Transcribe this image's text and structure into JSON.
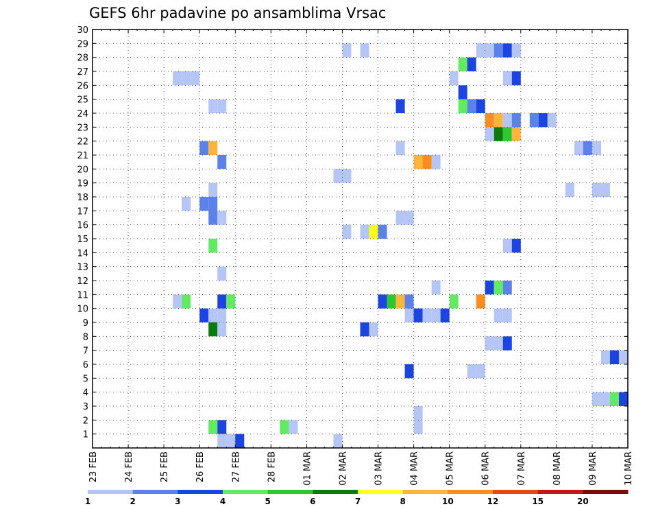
{
  "chart_data": {
    "type": "heatmap",
    "title": "GEFS 6hr padavine po ansamblima Vrsac",
    "x_tick_labels": [
      "23 FEB",
      "24 FEB",
      "25 FEB",
      "26 FEB",
      "27 FEB",
      "28 FEB",
      "01 MAR",
      "02 MAR",
      "03 MAR",
      "04 MAR",
      "05 MAR",
      "06 MAR",
      "07 MAR",
      "08 MAR",
      "09 MAR",
      "10 MAR"
    ],
    "y_tick_labels": [
      "1",
      "2",
      "3",
      "4",
      "5",
      "6",
      "7",
      "8",
      "9",
      "10",
      "11",
      "12",
      "13",
      "14",
      "15",
      "16",
      "17",
      "18",
      "19",
      "20",
      "21",
      "22",
      "23",
      "24",
      "25",
      "26",
      "27",
      "28",
      "29",
      "30"
    ],
    "xlim": [
      0,
      60
    ],
    "ylim": [
      0,
      30
    ],
    "grid": true,
    "colorbar": {
      "labels": [
        "1",
        "2",
        "3",
        "4",
        "5",
        "6",
        "7",
        "8",
        "10",
        "12",
        "15",
        "20"
      ],
      "colors": [
        "#b4c5f6",
        "#5a82ea",
        "#1c44e0",
        "#62ea62",
        "#2cc82c",
        "#0c7a0c",
        "#ffff20",
        "#ffb43c",
        "#ff8c1e",
        "#e64a14",
        "#c41818",
        "#7a0c0c"
      ]
    },
    "cells": [
      {
        "x": 14,
        "y": 0,
        "v": 1
      },
      {
        "x": 15,
        "y": 0,
        "v": 1
      },
      {
        "x": 16,
        "y": 0,
        "v": 3
      },
      {
        "x": 27,
        "y": 0,
        "v": 1
      },
      {
        "x": 21,
        "y": 1,
        "v": 4
      },
      {
        "x": 22,
        "y": 1,
        "v": 1
      },
      {
        "x": 13,
        "y": 1,
        "v": 4
      },
      {
        "x": 14,
        "y": 1,
        "v": 3
      },
      {
        "x": 36,
        "y": 1,
        "v": 1
      },
      {
        "x": 36,
        "y": 2,
        "v": 1
      },
      {
        "x": 56,
        "y": 3,
        "v": 1
      },
      {
        "x": 57,
        "y": 3,
        "v": 1
      },
      {
        "x": 58,
        "y": 3,
        "v": 4
      },
      {
        "x": 59,
        "y": 3,
        "v": 3
      },
      {
        "x": 60,
        "y": 3,
        "v": 1
      },
      {
        "x": 35,
        "y": 5,
        "v": 3
      },
      {
        "x": 42,
        "y": 5,
        "v": 1
      },
      {
        "x": 43,
        "y": 5,
        "v": 1
      },
      {
        "x": 57,
        "y": 6,
        "v": 1
      },
      {
        "x": 58,
        "y": 6,
        "v": 3
      },
      {
        "x": 59,
        "y": 6,
        "v": 1
      },
      {
        "x": 44,
        "y": 7,
        "v": 1
      },
      {
        "x": 45,
        "y": 7,
        "v": 1
      },
      {
        "x": 46,
        "y": 7,
        "v": 3
      },
      {
        "x": 13,
        "y": 8,
        "v": 6
      },
      {
        "x": 14,
        "y": 8,
        "v": 1
      },
      {
        "x": 30,
        "y": 8,
        "v": 3
      },
      {
        "x": 31,
        "y": 8,
        "v": 1
      },
      {
        "x": 12,
        "y": 9,
        "v": 3
      },
      {
        "x": 13,
        "y": 9,
        "v": 1
      },
      {
        "x": 14,
        "y": 9,
        "v": 1
      },
      {
        "x": 35,
        "y": 9,
        "v": 1
      },
      {
        "x": 36,
        "y": 9,
        "v": 3
      },
      {
        "x": 37,
        "y": 9,
        "v": 1
      },
      {
        "x": 38,
        "y": 9,
        "v": 1
      },
      {
        "x": 39,
        "y": 9,
        "v": 3
      },
      {
        "x": 45,
        "y": 9,
        "v": 1
      },
      {
        "x": 46,
        "y": 9,
        "v": 1
      },
      {
        "x": 9,
        "y": 10,
        "v": 1
      },
      {
        "x": 10,
        "y": 10,
        "v": 4
      },
      {
        "x": 14,
        "y": 10,
        "v": 3
      },
      {
        "x": 15,
        "y": 10,
        "v": 4
      },
      {
        "x": 32,
        "y": 10,
        "v": 3
      },
      {
        "x": 33,
        "y": 10,
        "v": 5
      },
      {
        "x": 34,
        "y": 10,
        "v": 8
      },
      {
        "x": 35,
        "y": 10,
        "v": 2
      },
      {
        "x": 40,
        "y": 10,
        "v": 4
      },
      {
        "x": 43,
        "y": 10,
        "v": 10
      },
      {
        "x": 60,
        "y": 10,
        "v": 6
      },
      {
        "x": 38,
        "y": 11,
        "v": 1
      },
      {
        "x": 44,
        "y": 11,
        "v": 3
      },
      {
        "x": 45,
        "y": 11,
        "v": 4
      },
      {
        "x": 46,
        "y": 11,
        "v": 2
      },
      {
        "x": 14,
        "y": 12,
        "v": 1
      },
      {
        "x": 13,
        "y": 14,
        "v": 4
      },
      {
        "x": 46,
        "y": 14,
        "v": 1
      },
      {
        "x": 47,
        "y": 14,
        "v": 3
      },
      {
        "x": 28,
        "y": 15,
        "v": 1
      },
      {
        "x": 30,
        "y": 15,
        "v": 1
      },
      {
        "x": 31,
        "y": 15,
        "v": 7
      },
      {
        "x": 32,
        "y": 15,
        "v": 2
      },
      {
        "x": 13,
        "y": 16,
        "v": 2
      },
      {
        "x": 14,
        "y": 16,
        "v": 1
      },
      {
        "x": 34,
        "y": 16,
        "v": 1
      },
      {
        "x": 35,
        "y": 16,
        "v": 1
      },
      {
        "x": 12,
        "y": 17,
        "v": 2
      },
      {
        "x": 13,
        "y": 17,
        "v": 2
      },
      {
        "x": 10,
        "y": 17,
        "v": 1
      },
      {
        "x": 13,
        "y": 18,
        "v": 1
      },
      {
        "x": 53,
        "y": 18,
        "v": 1
      },
      {
        "x": 56,
        "y": 18,
        "v": 1
      },
      {
        "x": 57,
        "y": 18,
        "v": 1
      },
      {
        "x": 27,
        "y": 19,
        "v": 1
      },
      {
        "x": 28,
        "y": 19,
        "v": 1
      },
      {
        "x": 14,
        "y": 20,
        "v": 2
      },
      {
        "x": 36,
        "y": 20,
        "v": 8
      },
      {
        "x": 37,
        "y": 20,
        "v": 10
      },
      {
        "x": 38,
        "y": 20,
        "v": 1
      },
      {
        "x": 12,
        "y": 21,
        "v": 2
      },
      {
        "x": 13,
        "y": 21,
        "v": 8
      },
      {
        "x": 34,
        "y": 21,
        "v": 1
      },
      {
        "x": 54,
        "y": 21,
        "v": 1
      },
      {
        "x": 55,
        "y": 21,
        "v": 2
      },
      {
        "x": 56,
        "y": 21,
        "v": 1
      },
      {
        "x": 44,
        "y": 22,
        "v": 1
      },
      {
        "x": 45,
        "y": 22,
        "v": 6
      },
      {
        "x": 46,
        "y": 22,
        "v": 5
      },
      {
        "x": 47,
        "y": 22,
        "v": 8
      },
      {
        "x": 44,
        "y": 23,
        "v": 10
      },
      {
        "x": 45,
        "y": 23,
        "v": 8
      },
      {
        "x": 46,
        "y": 23,
        "v": 1
      },
      {
        "x": 47,
        "y": 23,
        "v": 2
      },
      {
        "x": 49,
        "y": 23,
        "v": 2
      },
      {
        "x": 50,
        "y": 23,
        "v": 3
      },
      {
        "x": 51,
        "y": 23,
        "v": 1
      },
      {
        "x": 13,
        "y": 24,
        "v": 1
      },
      {
        "x": 14,
        "y": 24,
        "v": 1
      },
      {
        "x": 34,
        "y": 24,
        "v": 3
      },
      {
        "x": 41,
        "y": 24,
        "v": 4
      },
      {
        "x": 42,
        "y": 24,
        "v": 2
      },
      {
        "x": 43,
        "y": 24,
        "v": 3
      },
      {
        "x": 41,
        "y": 25,
        "v": 3
      },
      {
        "x": 9,
        "y": 26,
        "v": 1
      },
      {
        "x": 10,
        "y": 26,
        "v": 1
      },
      {
        "x": 11,
        "y": 26,
        "v": 1
      },
      {
        "x": 40,
        "y": 26,
        "v": 1
      },
      {
        "x": 46,
        "y": 26,
        "v": 1
      },
      {
        "x": 47,
        "y": 26,
        "v": 3
      },
      {
        "x": 41,
        "y": 27,
        "v": 4
      },
      {
        "x": 42,
        "y": 27,
        "v": 3
      },
      {
        "x": 28,
        "y": 28,
        "v": 1
      },
      {
        "x": 30,
        "y": 28,
        "v": 1
      },
      {
        "x": 43,
        "y": 28,
        "v": 1
      },
      {
        "x": 44,
        "y": 28,
        "v": 1
      },
      {
        "x": 45,
        "y": 28,
        "v": 2
      },
      {
        "x": 46,
        "y": 28,
        "v": 3
      },
      {
        "x": 47,
        "y": 28,
        "v": 1
      }
    ]
  }
}
